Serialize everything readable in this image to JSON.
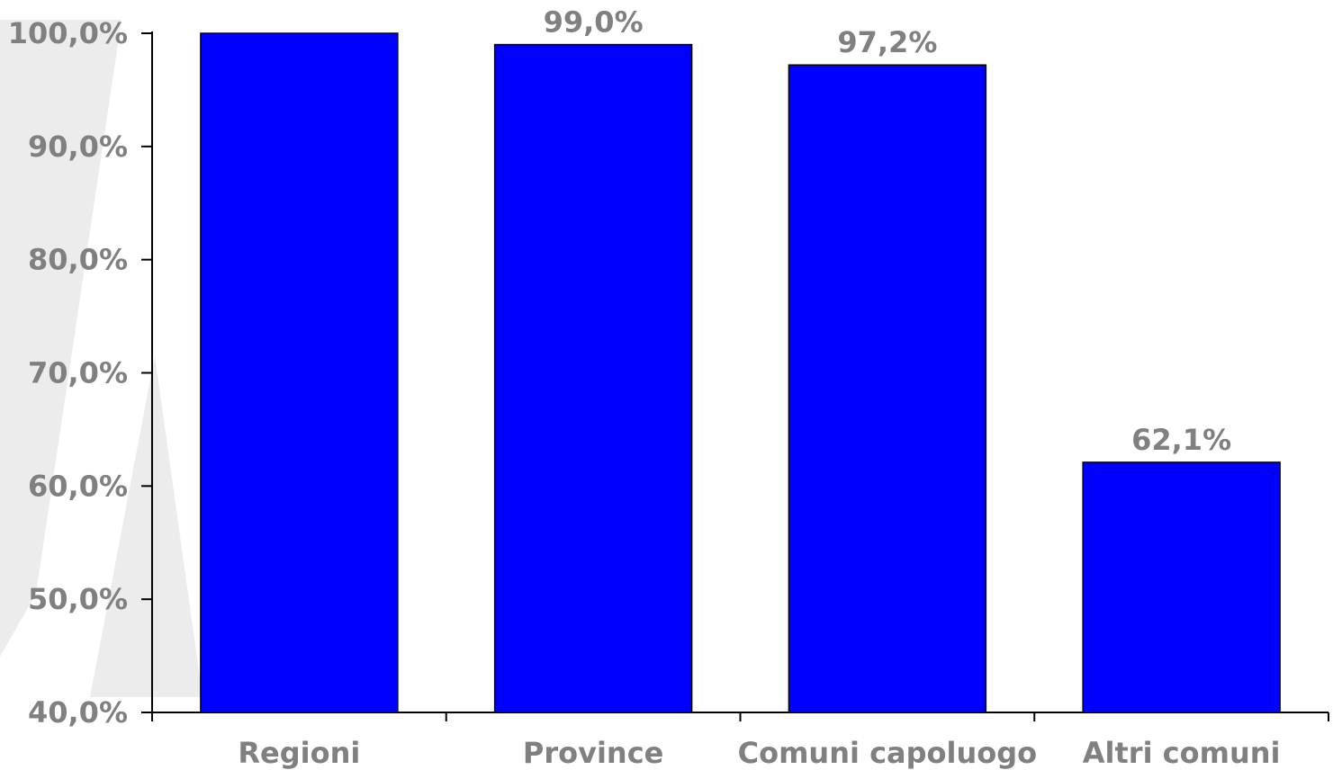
{
  "chart_data": {
    "type": "bar",
    "categories": [
      "Regioni",
      "Province",
      "Comuni capoluogo",
      "Altri comuni"
    ],
    "series": [
      {
        "values": [
          100.0,
          99.0,
          97.2,
          62.1
        ],
        "data_labels": [
          "",
          "99,0%",
          "97,2%",
          "62,1%"
        ],
        "color": "#0000ff"
      }
    ],
    "yticks": [
      40,
      50,
      60,
      70,
      80,
      90,
      100
    ],
    "ytick_labels": [
      "40,0%",
      "50,0%",
      "60,0%",
      "70,0%",
      "80,0%",
      "90,0%",
      "100,0%"
    ],
    "ylim": [
      40,
      100
    ],
    "title": "",
    "xlabel": "",
    "ylabel": "",
    "grid": false,
    "legend": "none",
    "colors": {
      "bar": "#0000ff",
      "bar_border": "#000000",
      "axis": "#000000",
      "text": "#808080",
      "background_shape": "#ececec"
    }
  }
}
